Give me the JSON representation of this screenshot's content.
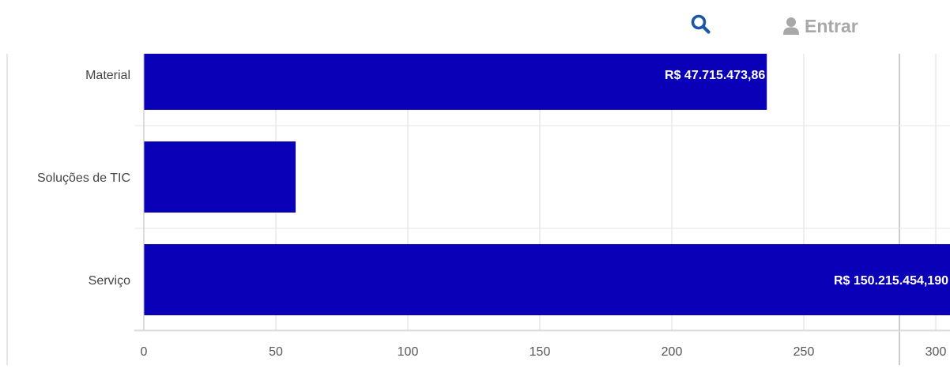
{
  "header": {
    "search_icon": "search-icon",
    "login_icon": "user-icon",
    "login_label": "Entrar",
    "accent_color": "#1a56a8"
  },
  "chart_data": {
    "type": "bar",
    "orientation": "horizontal",
    "categories": [
      "Material",
      "Soluções de TIC",
      "Serviço"
    ],
    "values": [
      236,
      57.5,
      310
    ],
    "data_labels": [
      "R$ 47.715.473,86",
      "",
      "R$ 150.215.454,190"
    ],
    "xlim": [
      0,
      300
    ],
    "xticks": [
      "0",
      "50",
      "100",
      "150",
      "200",
      "250",
      "300"
    ],
    "grid": true,
    "bar_color": "#0a00b8"
  }
}
